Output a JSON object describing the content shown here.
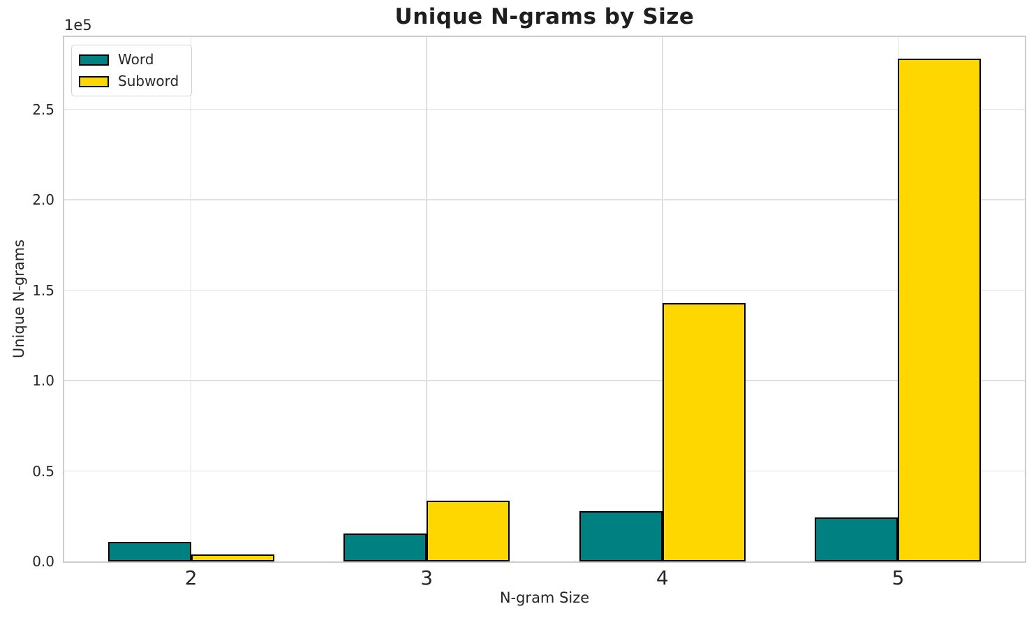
{
  "title": "Unique N-grams by Size",
  "chart_data": {
    "type": "bar",
    "title": "Unique N-grams by Size",
    "xlabel": "N-gram Size",
    "ylabel": "Unique N-grams",
    "y_offset_label": "1e5",
    "categories": [
      "2",
      "3",
      "4",
      "5"
    ],
    "series": [
      {
        "name": "Word",
        "color": "#008080",
        "values": [
          10700,
          15500,
          28000,
          24500
        ]
      },
      {
        "name": "Subword",
        "color": "#FFD700",
        "values": [
          4000,
          33500,
          143000,
          278000
        ]
      }
    ],
    "bar_edge_color": "#000000",
    "ylim": [
      0,
      290000
    ],
    "yticks": {
      "values": [
        0,
        50000,
        100000,
        150000,
        200000,
        250000
      ],
      "labels": [
        "0.0",
        "0.5",
        "1.0",
        "1.5",
        "2.0",
        "2.5"
      ]
    },
    "grid": true,
    "legend_position": "upper left"
  },
  "colors": {
    "background": "#ffffff",
    "grid": "#e0e0e0",
    "spine": "#cccccc",
    "text": "#262626",
    "title": "#1f1f1f"
  }
}
